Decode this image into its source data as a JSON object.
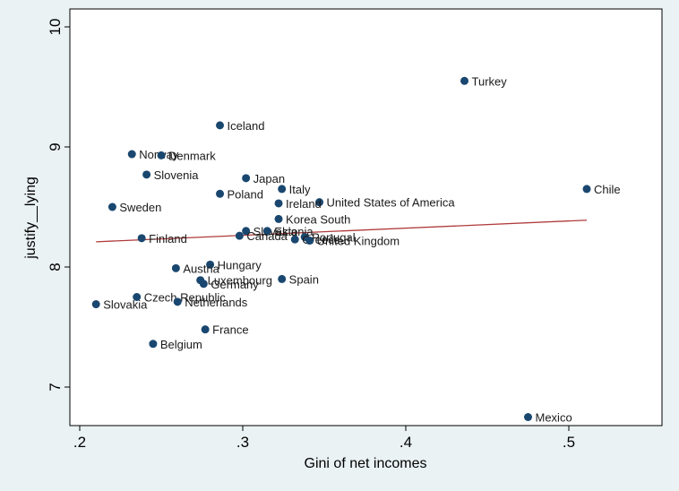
{
  "chart_data": {
    "type": "scatter",
    "xlabel": "Gini of net incomes",
    "ylabel": "justify__lying",
    "xlim": [
      0.18,
      0.56
    ],
    "ylim": [
      6.75,
      10.1
    ],
    "xticks": [
      {
        "value": 0.2,
        "label": ".2"
      },
      {
        "value": 0.3,
        "label": ".3"
      },
      {
        "value": 0.4,
        "label": ".4"
      },
      {
        "value": 0.5,
        "label": ".5"
      }
    ],
    "yticks": [
      {
        "value": 7,
        "label": "7"
      },
      {
        "value": 8,
        "label": "8"
      },
      {
        "value": 9,
        "label": "9"
      },
      {
        "value": 10,
        "label": "10"
      }
    ],
    "grid": false,
    "marker_color": "#1a476f",
    "fit_color": "#b03a3a",
    "fit_line": {
      "x": [
        0.21,
        0.511
      ],
      "y": [
        8.21,
        8.39
      ]
    },
    "points": [
      {
        "label": "Turkey",
        "x": 0.436,
        "y": 9.55
      },
      {
        "label": "Iceland",
        "x": 0.286,
        "y": 9.18
      },
      {
        "label": "Norway",
        "x": 0.232,
        "y": 8.94
      },
      {
        "label": "Denmark",
        "x": 0.25,
        "y": 8.93
      },
      {
        "label": "Slovenia",
        "x": 0.241,
        "y": 8.77
      },
      {
        "label": "Japan",
        "x": 0.302,
        "y": 8.74
      },
      {
        "label": "Chile",
        "x": 0.511,
        "y": 8.65
      },
      {
        "label": "Italy",
        "x": 0.324,
        "y": 8.65
      },
      {
        "label": "Poland",
        "x": 0.286,
        "y": 8.61
      },
      {
        "label": "United States of America",
        "x": 0.347,
        "y": 8.54
      },
      {
        "label": "Ireland",
        "x": 0.322,
        "y": 8.53
      },
      {
        "label": "Sweden",
        "x": 0.22,
        "y": 8.5
      },
      {
        "label": "Korea South",
        "x": 0.322,
        "y": 8.4
      },
      {
        "label": "Slovakia",
        "x": 0.302,
        "y": 8.3
      },
      {
        "label": "Estonia",
        "x": 0.315,
        "y": 8.3
      },
      {
        "label": "Canada",
        "x": 0.298,
        "y": 8.26
      },
      {
        "label": "Portugal",
        "x": 0.338,
        "y": 8.25
      },
      {
        "label": "Greece",
        "x": 0.332,
        "y": 8.23
      },
      {
        "label": "United Kingdom",
        "x": 0.341,
        "y": 8.22
      },
      {
        "label": "Finland",
        "x": 0.238,
        "y": 8.24
      },
      {
        "label": "Hungary",
        "x": 0.28,
        "y": 8.02
      },
      {
        "label": "Austria",
        "x": 0.259,
        "y": 7.99
      },
      {
        "label": "Spain",
        "x": 0.324,
        "y": 7.9
      },
      {
        "label": "Luxembourg",
        "x": 0.274,
        "y": 7.89
      },
      {
        "label": "Germany",
        "x": 0.276,
        "y": 7.86
      },
      {
        "label": "Czech Republic",
        "x": 0.235,
        "y": 7.75
      },
      {
        "label": "Netherlands",
        "x": 0.26,
        "y": 7.71
      },
      {
        "label": "Slovakia",
        "x": 0.21,
        "y": 7.69
      },
      {
        "label": "France",
        "x": 0.277,
        "y": 7.48
      },
      {
        "label": "Belgium",
        "x": 0.245,
        "y": 7.36
      },
      {
        "label": "Mexico",
        "x": 0.475,
        "y": 6.75
      }
    ]
  }
}
